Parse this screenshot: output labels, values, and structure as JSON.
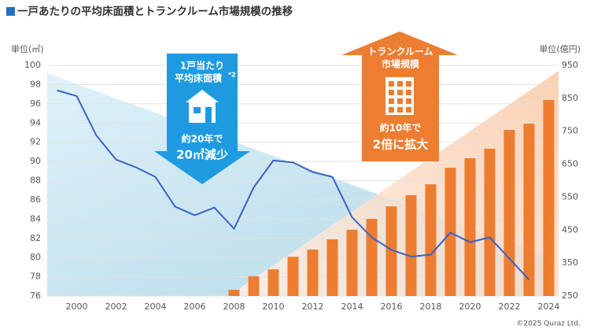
{
  "chart_data": {
    "type": "combo",
    "title": "一戸あたりの平均床面積とトランクルーム市場規模の推移",
    "y_label": "単位(㎡)",
    "y2_label": "単位(億円)",
    "x": [
      1999,
      2000,
      2001,
      2002,
      2003,
      2004,
      2005,
      2006,
      2007,
      2008,
      2009,
      2010,
      2011,
      2012,
      2013,
      2014,
      2015,
      2016,
      2017,
      2018,
      2019,
      2020,
      2021,
      2022,
      2023,
      2024
    ],
    "xlim": [
      1998.5,
      2024.5
    ],
    "xticks": [
      2000,
      2002,
      2004,
      2006,
      2008,
      2010,
      2012,
      2014,
      2016,
      2018,
      2020,
      2022,
      2024
    ],
    "ylim": [
      76,
      100
    ],
    "yticks": [
      76,
      78,
      80,
      82,
      84,
      86,
      88,
      90,
      92,
      94,
      96,
      98,
      100
    ],
    "y2lim": [
      250,
      950
    ],
    "y2ticks": [
      250,
      350,
      450,
      550,
      650,
      750,
      850,
      950
    ],
    "grid": true,
    "series": [
      {
        "type": "line",
        "color": "#3a62c4",
        "values": [
          97.4,
          96.8,
          92.7,
          90.2,
          89.4,
          88.4,
          85.3,
          84.4,
          85.2,
          83.0,
          87.3,
          90.1,
          89.9,
          88.9,
          88.4,
          84.2,
          82.1,
          80.8,
          80.1,
          80.3,
          82.6,
          81.6,
          82.1,
          79.9,
          77.7,
          null
        ]
      },
      {
        "type": "bar",
        "axis": "y2",
        "color": "#ed7d31",
        "values": [
          null,
          null,
          null,
          null,
          null,
          null,
          null,
          null,
          null,
          269,
          310,
          331,
          369,
          391,
          422,
          451,
          484,
          522,
          556,
          589,
          639,
          668,
          697,
          754,
          773,
          845
        ]
      }
    ],
    "annotations": {
      "floor_area": {
        "line1": "1戸当たり",
        "line2": "平均床面積",
        "note": "*2",
        "period": "約20年で",
        "change": "20㎡減少"
      },
      "market": {
        "line1": "トランクルーム",
        "line2": "市場規模",
        "period": "約10年で",
        "change": "2倍に拡大"
      }
    },
    "copyright": "©2025 Quraz Ltd."
  }
}
